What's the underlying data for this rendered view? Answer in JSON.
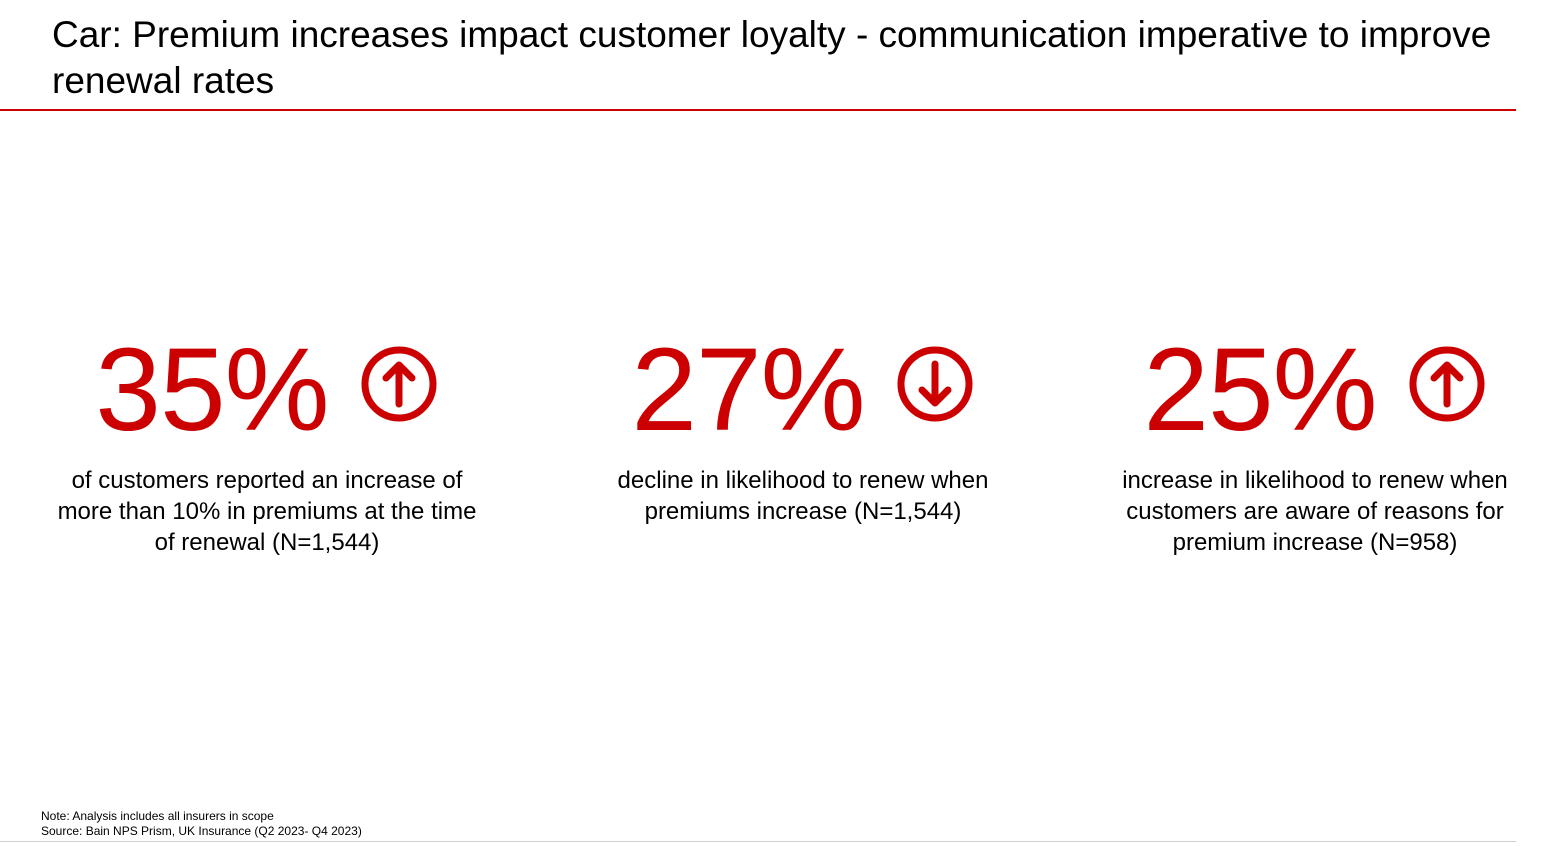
{
  "slide": {
    "title": "Car: Premium increases impact customer loyalty - communication imperative to improve renewal rates",
    "accent_color": "#cc0000"
  },
  "stats": [
    {
      "value": "35%",
      "arrow_icon": "arrow-up-circle-icon",
      "description": "of customers reported an increase of more than 10% in premiums at the time of renewal (N=1,544)"
    },
    {
      "value": "27%",
      "arrow_icon": "arrow-down-circle-icon",
      "description": "decline in likelihood to renew when premiums increase (N=1,544)"
    },
    {
      "value": "25%",
      "arrow_icon": "arrow-up-circle-icon",
      "description": "increase in likelihood to renew when customers are aware of reasons for premium increase (N=958)"
    }
  ],
  "footnotes": {
    "note": "Note: Analysis includes all insurers in scope",
    "source": "Source: Bain NPS Prism, UK Insurance (Q2 2023- Q4 2023)"
  }
}
